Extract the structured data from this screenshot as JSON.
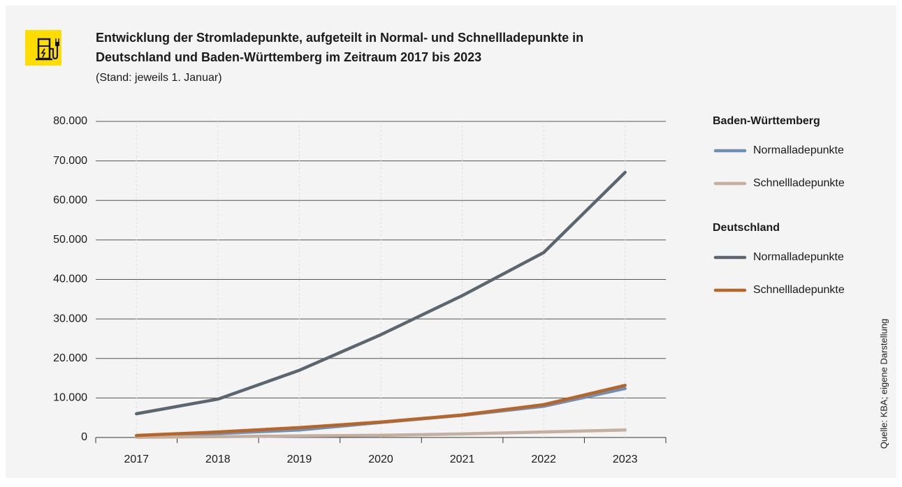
{
  "chart_data": {
    "type": "line",
    "title": [
      "Entwicklung der Stromladepunkte, aufgeteilt in Normal- und Schnellladepunkte in",
      "Deutschland und Baden-Württemberg im Zeitraum 2017 bis 2023"
    ],
    "subtitle": "(Stand: jeweils 1. Januar)",
    "source": "Quelle: KBA; eigene Darstellung",
    "categories": [
      "2017",
      "2018",
      "2019",
      "2020",
      "2021",
      "2022",
      "2023"
    ],
    "series": [
      {
        "group": "Baden-Württemberg",
        "name": "Normalladepunkte",
        "color": "#6f8fb5",
        "values": [
          400,
          1000,
          1900,
          3800,
          5600,
          7900,
          12400
        ]
      },
      {
        "name": "Schnellladepunkte",
        "color": "#c4b0a0",
        "values": [
          50,
          200,
          400,
          550,
          900,
          1400,
          1900
        ]
      },
      {
        "group": "Deutschland",
        "name": "Normalladepunkte",
        "color": "#5b666e",
        "values": [
          6000,
          9700,
          17000,
          26000,
          35900,
          46800,
          67100
        ]
      },
      {
        "name": "Schnellladepunkte",
        "color": "#b8652a",
        "values": [
          500,
          1400,
          2500,
          3900,
          5700,
          8300,
          13200
        ]
      }
    ],
    "ylim": [
      0,
      80000
    ],
    "yticks": [
      0,
      {
        "value": 10000,
        "label": "10.000"
      },
      {
        "value": 20000,
        "label": "20.000"
      },
      {
        "value": 30000,
        "label": "30.000"
      },
      {
        "value": 40000,
        "label": "40.000"
      },
      {
        "value": 50000,
        "label": "50.000"
      },
      {
        "value": 60000,
        "label": "60.000"
      },
      {
        "value": 70000,
        "label": "70.000"
      },
      {
        "value": 80000,
        "label": "80.000"
      }
    ],
    "grid": true
  }
}
